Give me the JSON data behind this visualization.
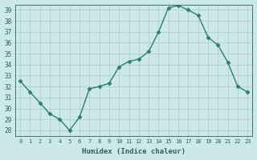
{
  "x": [
    0,
    1,
    2,
    3,
    4,
    5,
    6,
    7,
    8,
    9,
    10,
    11,
    12,
    13,
    14,
    15,
    16,
    17,
    18,
    19,
    20,
    21,
    22,
    23
  ],
  "y": [
    32.5,
    31.5,
    30.5,
    29.5,
    29.0,
    28.0,
    29.2,
    31.8,
    32.0,
    32.3,
    33.8,
    34.3,
    34.5,
    35.2,
    37.0,
    39.2,
    39.4,
    39.0,
    38.5,
    36.5,
    35.8,
    34.2,
    32.0,
    31.5
  ],
  "ylim": [
    27.5,
    39.5
  ],
  "yticks": [
    28,
    29,
    30,
    31,
    32,
    33,
    34,
    35,
    36,
    37,
    38,
    39
  ],
  "xlim": [
    -0.5,
    23.5
  ],
  "xticks": [
    0,
    1,
    2,
    3,
    4,
    5,
    6,
    7,
    8,
    9,
    10,
    11,
    12,
    13,
    14,
    15,
    16,
    17,
    18,
    19,
    20,
    21,
    22,
    23
  ],
  "xlabel": "Humidex (Indice chaleur)",
  "line_color": "#2e7d6e",
  "marker": "D",
  "marker_size": 2.5,
  "bg_color": "#cce8e8",
  "grid_color": "#aacccc",
  "tick_color": "#2e5f58",
  "label_color": "#2e5f58"
}
